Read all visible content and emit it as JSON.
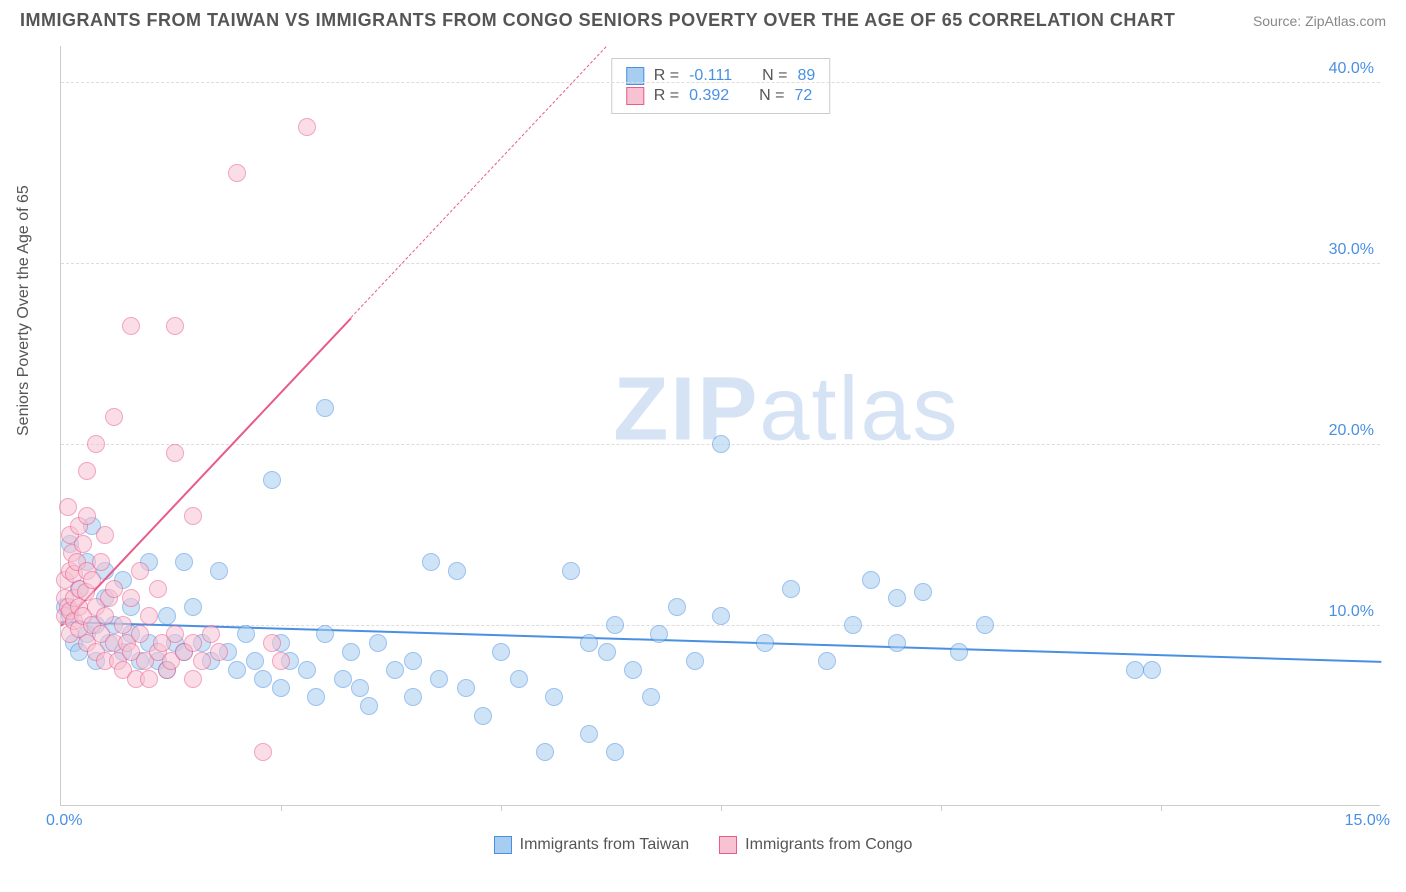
{
  "header": {
    "title": "IMMIGRANTS FROM TAIWAN VS IMMIGRANTS FROM CONGO SENIORS POVERTY OVER THE AGE OF 65 CORRELATION CHART",
    "source": "Source: ZipAtlas.com"
  },
  "watermark": {
    "zip": "ZIP",
    "atlas": "atlas"
  },
  "chart": {
    "type": "scatter",
    "y_label": "Seniors Poverty Over the Age of 65",
    "background_color": "#ffffff",
    "grid_color": "#dddddd",
    "axis_color": "#cccccc",
    "tick_color": "#4a90e2",
    "label_fontsize": 16,
    "xlim": [
      0,
      15
    ],
    "ylim": [
      0,
      42
    ],
    "x_ticks": [
      {
        "pos": 0.0,
        "label": "0.0%"
      },
      {
        "pos": 15.0,
        "label": "15.0%"
      }
    ],
    "x_tick_marks": [
      2.5,
      5.0,
      7.5,
      10.0,
      12.5
    ],
    "y_ticks": [
      {
        "pos": 10.0,
        "label": "10.0%"
      },
      {
        "pos": 20.0,
        "label": "20.0%"
      },
      {
        "pos": 30.0,
        "label": "30.0%"
      },
      {
        "pos": 40.0,
        "label": "40.0%"
      }
    ],
    "series": [
      {
        "id": "taiwan",
        "label": "Immigrants from Taiwan",
        "fill_color": "#a7cdf0",
        "stroke_color": "#4a90e2",
        "fill_opacity": 0.55,
        "marker_size": 18,
        "R": "-0.111",
        "N": "89",
        "trend": {
          "x0": 0,
          "y0": 10.2,
          "x1": 15,
          "y1": 8.0,
          "dash_after": null
        },
        "points": [
          [
            0.05,
            11.0
          ],
          [
            0.1,
            10.5
          ],
          [
            0.1,
            14.5
          ],
          [
            0.15,
            9.0
          ],
          [
            0.2,
            12.0
          ],
          [
            0.2,
            8.5
          ],
          [
            0.3,
            13.5
          ],
          [
            0.3,
            9.5
          ],
          [
            0.35,
            15.5
          ],
          [
            0.4,
            10.0
          ],
          [
            0.4,
            8.0
          ],
          [
            0.5,
            11.5
          ],
          [
            0.5,
            13.0
          ],
          [
            0.55,
            9.0
          ],
          [
            0.6,
            10.0
          ],
          [
            0.7,
            8.5
          ],
          [
            0.7,
            12.5
          ],
          [
            0.8,
            9.5
          ],
          [
            0.8,
            11.0
          ],
          [
            0.9,
            8.0
          ],
          [
            1.0,
            13.5
          ],
          [
            1.0,
            9.0
          ],
          [
            1.1,
            8.0
          ],
          [
            1.2,
            10.5
          ],
          [
            1.2,
            7.5
          ],
          [
            1.3,
            9.0
          ],
          [
            1.4,
            13.5
          ],
          [
            1.4,
            8.5
          ],
          [
            1.5,
            11.0
          ],
          [
            1.6,
            9.0
          ],
          [
            1.7,
            8.0
          ],
          [
            1.8,
            13.0
          ],
          [
            1.9,
            8.5
          ],
          [
            2.0,
            7.5
          ],
          [
            2.1,
            9.5
          ],
          [
            2.2,
            8.0
          ],
          [
            2.3,
            7.0
          ],
          [
            2.4,
            18.0
          ],
          [
            2.5,
            9.0
          ],
          [
            2.5,
            6.5
          ],
          [
            2.6,
            8.0
          ],
          [
            2.8,
            7.5
          ],
          [
            2.9,
            6.0
          ],
          [
            3.0,
            9.5
          ],
          [
            3.0,
            22.0
          ],
          [
            3.2,
            7.0
          ],
          [
            3.3,
            8.5
          ],
          [
            3.4,
            6.5
          ],
          [
            3.5,
            5.5
          ],
          [
            3.6,
            9.0
          ],
          [
            3.8,
            7.5
          ],
          [
            4.0,
            8.0
          ],
          [
            4.0,
            6.0
          ],
          [
            4.2,
            13.5
          ],
          [
            4.3,
            7.0
          ],
          [
            4.5,
            13.0
          ],
          [
            4.6,
            6.5
          ],
          [
            4.8,
            5.0
          ],
          [
            5.0,
            8.5
          ],
          [
            5.2,
            7.0
          ],
          [
            5.5,
            3.0
          ],
          [
            5.6,
            6.0
          ],
          [
            5.8,
            13.0
          ],
          [
            6.0,
            9.0
          ],
          [
            6.0,
            4.0
          ],
          [
            6.2,
            8.5
          ],
          [
            6.3,
            10.0
          ],
          [
            6.3,
            3.0
          ],
          [
            6.5,
            7.5
          ],
          [
            6.7,
            6.0
          ],
          [
            6.8,
            9.5
          ],
          [
            7.0,
            11.0
          ],
          [
            7.2,
            8.0
          ],
          [
            7.5,
            10.5
          ],
          [
            7.5,
            20.0
          ],
          [
            8.0,
            9.0
          ],
          [
            8.3,
            12.0
          ],
          [
            8.7,
            8.0
          ],
          [
            9.0,
            10.0
          ],
          [
            9.2,
            12.5
          ],
          [
            9.5,
            11.5
          ],
          [
            9.5,
            9.0
          ],
          [
            9.8,
            11.8
          ],
          [
            10.2,
            8.5
          ],
          [
            10.5,
            10.0
          ],
          [
            12.2,
            7.5
          ],
          [
            12.4,
            7.5
          ]
        ]
      },
      {
        "id": "congo",
        "label": "Immigrants from Congo",
        "fill_color": "#f7c2d2",
        "stroke_color": "#e85b8b",
        "fill_opacity": 0.55,
        "marker_size": 18,
        "R": "0.392",
        "N": "72",
        "trend": {
          "x0": 0,
          "y0": 10.0,
          "x1": 6.2,
          "y1": 42.0,
          "dash_after": 3.3
        },
        "points": [
          [
            0.05,
            10.5
          ],
          [
            0.05,
            11.5
          ],
          [
            0.05,
            12.5
          ],
          [
            0.08,
            11.0
          ],
          [
            0.08,
            16.5
          ],
          [
            0.1,
            10.8
          ],
          [
            0.1,
            13.0
          ],
          [
            0.1,
            15.0
          ],
          [
            0.1,
            9.5
          ],
          [
            0.12,
            14.0
          ],
          [
            0.15,
            11.5
          ],
          [
            0.15,
            12.8
          ],
          [
            0.15,
            10.2
          ],
          [
            0.18,
            13.5
          ],
          [
            0.2,
            11.0
          ],
          [
            0.2,
            15.5
          ],
          [
            0.2,
            9.8
          ],
          [
            0.22,
            12.0
          ],
          [
            0.25,
            10.5
          ],
          [
            0.25,
            14.5
          ],
          [
            0.28,
            11.8
          ],
          [
            0.3,
            9.0
          ],
          [
            0.3,
            13.0
          ],
          [
            0.3,
            16.0
          ],
          [
            0.3,
            18.5
          ],
          [
            0.35,
            10.0
          ],
          [
            0.35,
            12.5
          ],
          [
            0.4,
            11.0
          ],
          [
            0.4,
            8.5
          ],
          [
            0.4,
            20.0
          ],
          [
            0.45,
            9.5
          ],
          [
            0.45,
            13.5
          ],
          [
            0.5,
            10.5
          ],
          [
            0.5,
            8.0
          ],
          [
            0.5,
            15.0
          ],
          [
            0.55,
            11.5
          ],
          [
            0.6,
            9.0
          ],
          [
            0.6,
            12.0
          ],
          [
            0.6,
            21.5
          ],
          [
            0.65,
            8.0
          ],
          [
            0.7,
            10.0
          ],
          [
            0.7,
            7.5
          ],
          [
            0.75,
            9.0
          ],
          [
            0.8,
            8.5
          ],
          [
            0.8,
            11.5
          ],
          [
            0.8,
            26.5
          ],
          [
            0.85,
            7.0
          ],
          [
            0.9,
            9.5
          ],
          [
            0.9,
            13.0
          ],
          [
            0.95,
            8.0
          ],
          [
            1.0,
            10.5
          ],
          [
            1.0,
            7.0
          ],
          [
            1.1,
            8.5
          ],
          [
            1.1,
            12.0
          ],
          [
            1.15,
            9.0
          ],
          [
            1.2,
            7.5
          ],
          [
            1.25,
            8.0
          ],
          [
            1.3,
            9.5
          ],
          [
            1.3,
            19.5
          ],
          [
            1.3,
            26.5
          ],
          [
            1.4,
            8.5
          ],
          [
            1.5,
            7.0
          ],
          [
            1.5,
            9.0
          ],
          [
            1.5,
            16.0
          ],
          [
            1.6,
            8.0
          ],
          [
            1.7,
            9.5
          ],
          [
            1.8,
            8.5
          ],
          [
            2.0,
            35.0
          ],
          [
            2.3,
            3.0
          ],
          [
            2.4,
            9.0
          ],
          [
            2.5,
            8.0
          ],
          [
            2.8,
            37.5
          ]
        ]
      }
    ]
  },
  "stats_box": {
    "R_label": "R =",
    "N_label": "N ="
  }
}
